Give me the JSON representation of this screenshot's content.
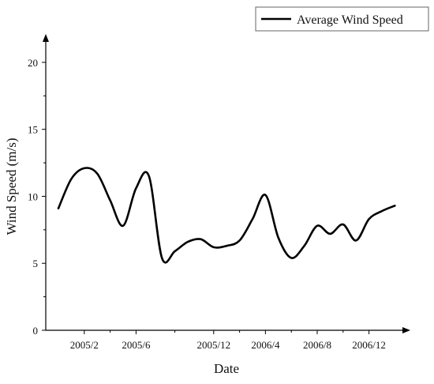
{
  "chart_data": {
    "type": "line",
    "title": "",
    "xlabel": "Date",
    "ylabel": "Wind Speed (m/s)",
    "ylim": [
      0,
      22
    ],
    "yticks": [
      0,
      5,
      10,
      15,
      20
    ],
    "x_tick_labels": [
      "2005/2",
      "2005/6",
      "2005/12",
      "2006/4",
      "2006/8",
      "2006/12"
    ],
    "grid": false,
    "legend_position": "top-right",
    "series": [
      {
        "name": "Average Wind Speed",
        "color": "#000000",
        "points": [
          {
            "date": "2004-12",
            "value": 9.1
          },
          {
            "date": "2005-01",
            "value": 11.3
          },
          {
            "date": "2005-02",
            "value": 12.1
          },
          {
            "date": "2005-03",
            "value": 11.7
          },
          {
            "date": "2005-04",
            "value": 9.7
          },
          {
            "date": "2005-05",
            "value": 7.8
          },
          {
            "date": "2005-06",
            "value": 10.6
          },
          {
            "date": "2005-07",
            "value": 11.5
          },
          {
            "date": "2005-08",
            "value": 5.4
          },
          {
            "date": "2005-09",
            "value": 5.9
          },
          {
            "date": "2005-10",
            "value": 6.6
          },
          {
            "date": "2005-11",
            "value": 6.8
          },
          {
            "date": "2005-12",
            "value": 6.2
          },
          {
            "date": "2006-01",
            "value": 6.3
          },
          {
            "date": "2006-02",
            "value": 6.7
          },
          {
            "date": "2006-03",
            "value": 8.3
          },
          {
            "date": "2006-04",
            "value": 10.1
          },
          {
            "date": "2006-05",
            "value": 6.9
          },
          {
            "date": "2006-06",
            "value": 5.4
          },
          {
            "date": "2006-07",
            "value": 6.3
          },
          {
            "date": "2006-08",
            "value": 7.8
          },
          {
            "date": "2006-09",
            "value": 7.2
          },
          {
            "date": "2006-10",
            "value": 7.9
          },
          {
            "date": "2006-11",
            "value": 6.7
          },
          {
            "date": "2006-12",
            "value": 8.3
          },
          {
            "date": "2007-01",
            "value": 8.9
          },
          {
            "date": "2007-02",
            "value": 9.3
          }
        ]
      }
    ]
  }
}
